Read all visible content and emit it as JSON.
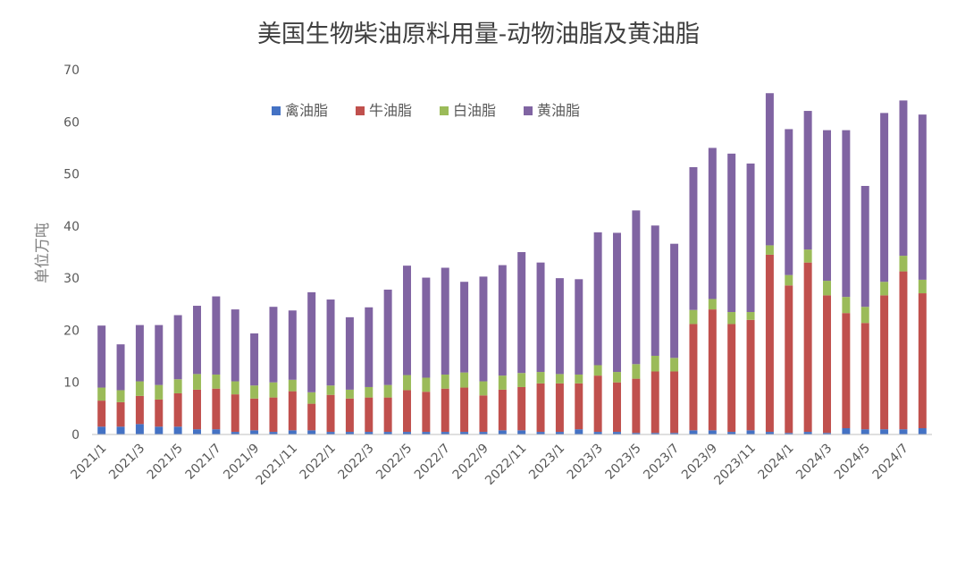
{
  "chart_data": {
    "type": "bar",
    "stacked": true,
    "title": "美国生物柴油原料用量-动物油脂及黄油脂",
    "ylabel": "单位万吨",
    "xlabel": "",
    "ylim": [
      0,
      70
    ],
    "yticks": [
      0,
      10,
      20,
      30,
      40,
      50,
      60,
      70
    ],
    "grid": false,
    "legend_position": "top-left",
    "categories": [
      "2021/1",
      "2021/2",
      "2021/3",
      "2021/4",
      "2021/5",
      "2021/6",
      "2021/7",
      "2021/8",
      "2021/9",
      "2021/10",
      "2021/11",
      "2021/12",
      "2022/1",
      "2022/2",
      "2022/3",
      "2022/4",
      "2022/5",
      "2022/6",
      "2022/7",
      "2022/8",
      "2022/9",
      "2022/10",
      "2022/11",
      "2022/12",
      "2023/1",
      "2023/2",
      "2023/3",
      "2023/4",
      "2023/5",
      "2023/6",
      "2023/7",
      "2023/8",
      "2023/9",
      "2023/10",
      "2023/11",
      "2023/12",
      "2024/1",
      "2024/2",
      "2024/3",
      "2024/4",
      "2024/5",
      "2024/6",
      "2024/7",
      "2024/8"
    ],
    "tick_labels": [
      "2021/1",
      "2021/3",
      "2021/5",
      "2021/7",
      "2021/9",
      "2021/11",
      "2022/1",
      "2022/3",
      "2022/5",
      "2022/7",
      "2022/9",
      "2022/11",
      "2023/1",
      "2023/3",
      "2023/5",
      "2023/7",
      "2023/9",
      "2023/11",
      "2024/1",
      "2024/3",
      "2024/5",
      "2024/7"
    ],
    "series": [
      {
        "name": "禽油脂",
        "color": "#4472C4",
        "values": [
          1.5,
          1.5,
          2.0,
          1.5,
          1.5,
          1.0,
          1.0,
          0.5,
          0.8,
          0.5,
          0.8,
          0.8,
          0.5,
          0.5,
          0.5,
          0.5,
          0.5,
          0.5,
          0.5,
          0.5,
          0.5,
          0.8,
          0.8,
          0.5,
          0.5,
          1.0,
          0.5,
          0.5,
          0.3,
          0.3,
          0.3,
          0.8,
          0.8,
          0.5,
          0.8,
          0.5,
          0.3,
          0.5,
          0.3,
          1.2,
          1.0,
          1.0,
          1.0,
          1.2
        ]
      },
      {
        "name": "牛油脂",
        "color": "#C0504D",
        "values": [
          5.0,
          4.7,
          5.4,
          5.2,
          6.4,
          7.6,
          7.8,
          7.2,
          6.1,
          6.6,
          7.5,
          5.1,
          7.1,
          6.4,
          6.6,
          6.6,
          8.0,
          7.7,
          8.3,
          8.5,
          7.0,
          7.8,
          8.3,
          9.3,
          9.3,
          8.8,
          10.8,
          9.5,
          10.4,
          11.8,
          11.8,
          20.4,
          23.2,
          20.7,
          21.2,
          34.0,
          28.3,
          32.5,
          26.4,
          22.1,
          20.4,
          25.7,
          30.3,
          25.9
        ]
      },
      {
        "name": "白油脂",
        "color": "#9BBB59",
        "values": [
          2.5,
          2.3,
          2.8,
          2.8,
          2.7,
          3.0,
          2.7,
          2.5,
          2.5,
          2.9,
          2.2,
          2.2,
          1.8,
          1.7,
          2.0,
          2.4,
          2.9,
          2.7,
          2.7,
          2.9,
          2.7,
          2.7,
          2.7,
          2.2,
          1.8,
          1.7,
          2.0,
          2.0,
          2.8,
          3.0,
          2.6,
          2.7,
          2.0,
          2.3,
          1.5,
          1.8,
          2.0,
          2.5,
          2.8,
          3.1,
          3.1,
          2.6,
          3.0,
          2.6
        ]
      },
      {
        "name": "黄油脂",
        "color": "#8064A2",
        "values": [
          11.9,
          8.8,
          10.8,
          11.5,
          12.3,
          13.1,
          15.0,
          13.8,
          10.0,
          14.5,
          13.3,
          19.2,
          16.5,
          13.9,
          15.3,
          18.3,
          21.0,
          19.2,
          20.5,
          17.4,
          20.1,
          21.2,
          23.2,
          21.0,
          18.4,
          18.3,
          25.5,
          26.7,
          29.5,
          25.0,
          21.9,
          27.4,
          29.0,
          30.4,
          28.5,
          29.2,
          28.0,
          26.6,
          28.9,
          32.0,
          23.2,
          32.4,
          29.8,
          31.7
        ]
      }
    ]
  }
}
